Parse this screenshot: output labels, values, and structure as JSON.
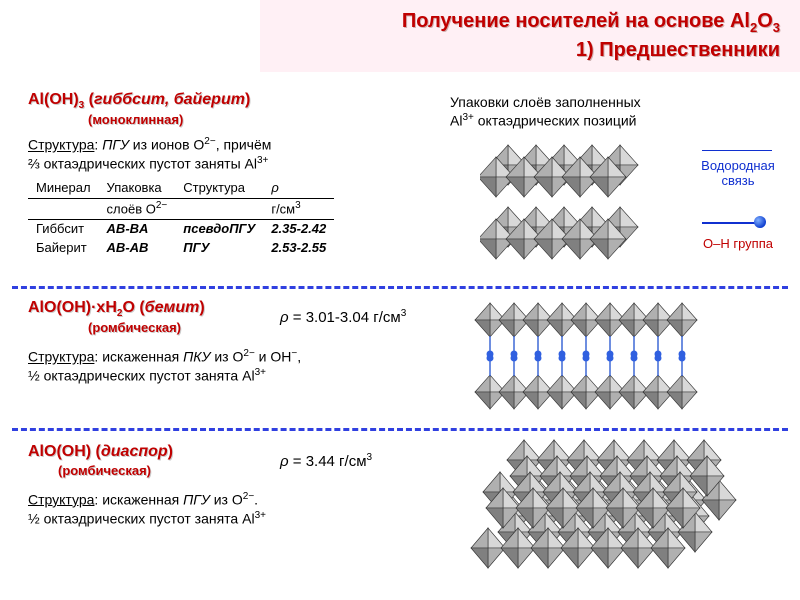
{
  "title": {
    "line1_pre": "Получение носителей на основе Al",
    "line1_sub": "2",
    "line1_post_pre": "O",
    "line1_sub2": "3",
    "line2": "1) Предшественники"
  },
  "section1": {
    "heading_pre": "Al(OH)",
    "heading_sub": "3",
    "heading_post": " (",
    "heading_em": "гиббсит, байерит",
    "heading_close": ")",
    "sub": "(моноклинная)",
    "struct_label": "Структура",
    "struct_text1_a": ": ",
    "struct_text1_b": "ПГУ",
    "struct_text1_c": " из ионов O",
    "struct_text1_sup": "2−",
    "struct_text1_d": ", причём",
    "struct_text2_a": "⅔  октаэдрических пустот заняты Al",
    "struct_text2_sup": "3+",
    "table": {
      "headers": [
        "Минерал",
        "Упаковка",
        "Структура",
        "ρ"
      ],
      "headers2": [
        "",
        "слоёв O2−",
        "",
        "г/см3"
      ],
      "rows": [
        [
          "Гиббсит",
          "AB-BA",
          "псевдоПГУ",
          "2.35-2.42"
        ],
        [
          "Байерит",
          "AB-AB",
          "ПГУ",
          "2.53-2.55"
        ]
      ]
    }
  },
  "right_top": {
    "line1": "Упаковки слоёв заполненных",
    "line2_pre": "Al",
    "line2_sup": "3+",
    "line2_post": " октаэдрических позиций"
  },
  "legend": {
    "hbond": "Водородная связь",
    "oh": "O–H группа"
  },
  "section2": {
    "heading_pre": "AlO(OH)·xH",
    "heading_sub": "2",
    "heading_post": "O (",
    "heading_em": "бемит",
    "heading_close": ")",
    "sub": "(ромбическая)",
    "density_a": "ρ = 3.01-3.04 г/см",
    "density_sup": "3",
    "struct_label": "Структура",
    "struct_text1_a": ": искаженная ",
    "struct_text1_b": "ПКУ",
    "struct_text1_c": " из O",
    "struct_text1_sup": "2−",
    "struct_text1_d": " и OH",
    "struct_text1_sup2": "−",
    "struct_text1_e": ",",
    "struct_text2_a": "½ октаэдрических пустот занята Al",
    "struct_text2_sup": "3+"
  },
  "section3": {
    "heading_pre": "AlO(OH) (",
    "heading_em": "диаспор",
    "heading_close": ")",
    "sub": "(ромбическая)",
    "density_a": "ρ = 3.44 г/см",
    "density_sup": "3",
    "struct_label": "Структура",
    "struct_text1_a": ": искаженная ",
    "struct_text1_b": "ПГУ",
    "struct_text1_c": " из O",
    "struct_text1_sup": "2−",
    "struct_text1_d": ".",
    "struct_text2_a": "½ октаэдрических пустот занята Al",
    "struct_text2_sup": "3+"
  },
  "colors": {
    "face_light": "#d8d8d8",
    "face_mid": "#b0b0b0",
    "face_dark": "#808080",
    "edge": "#303030",
    "bond": "#2050d0",
    "atom": "#3060e0",
    "divider": "#3040e0",
    "heading": "#c00000"
  }
}
